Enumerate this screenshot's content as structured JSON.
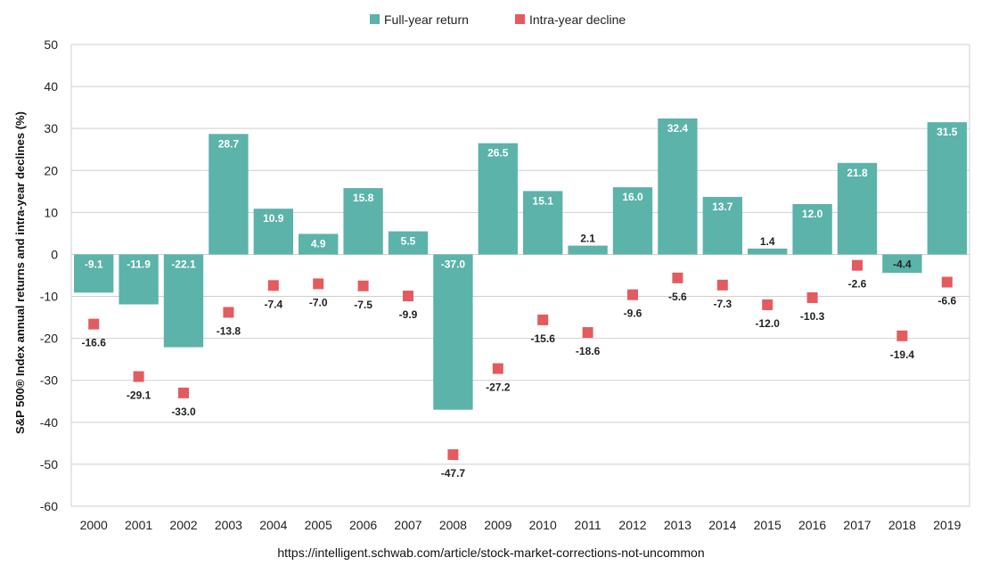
{
  "chart_data": {
    "type": "bar",
    "ylabel": "S&P 500® Index annual returns and intra-year declines (%)",
    "ylim": [
      -60,
      50
    ],
    "yticks": [
      50,
      40,
      30,
      20,
      10,
      0,
      -10,
      -20,
      -30,
      -40,
      -50,
      -60
    ],
    "grid": true,
    "legend_position": "top-center",
    "categories": [
      "2000",
      "2001",
      "2002",
      "2003",
      "2004",
      "2005",
      "2006",
      "2007",
      "2008",
      "2009",
      "2010",
      "2011",
      "2012",
      "2013",
      "2014",
      "2015",
      "2016",
      "2017",
      "2018",
      "2019"
    ],
    "series": [
      {
        "name": "Full-year return",
        "kind": "bar",
        "color": "#5bb3aa",
        "values": [
          -9.1,
          -11.9,
          -22.1,
          28.7,
          10.9,
          4.9,
          15.8,
          5.5,
          -37.0,
          26.5,
          15.1,
          2.1,
          16.0,
          32.4,
          13.7,
          1.4,
          12.0,
          21.8,
          -4.4,
          31.5
        ]
      },
      {
        "name": "Intra-year decline",
        "kind": "marker",
        "color": "#e35b5f",
        "values": [
          -16.6,
          -29.1,
          -33.0,
          -13.8,
          -7.4,
          -7.0,
          -7.5,
          -9.9,
          -47.7,
          -27.2,
          -15.6,
          -18.6,
          -9.6,
          -5.6,
          -7.3,
          -12.0,
          -10.3,
          -2.6,
          -19.4,
          -6.6
        ]
      }
    ]
  },
  "source_url": "https://intelligent.schwab.com/article/stock-market-corrections-not-uncommon"
}
